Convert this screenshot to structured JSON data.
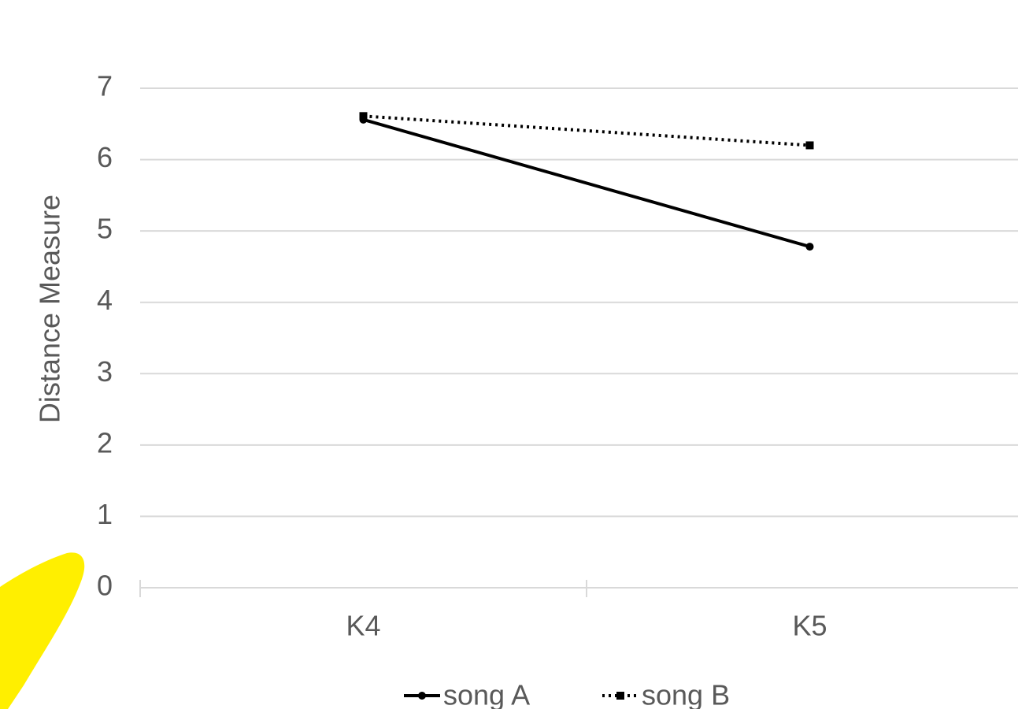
{
  "chart_data": {
    "type": "line",
    "y_label": "Distance Measure",
    "categories": [
      "K4",
      "K5"
    ],
    "series": [
      {
        "name": "song A",
        "color": "#000000",
        "dash": "solid",
        "marker": "circle",
        "values": [
          6.56,
          4.78
        ]
      },
      {
        "name": "song B",
        "color": "#000000",
        "dash": "dotted",
        "marker": "square",
        "values": [
          6.61,
          6.2
        ]
      }
    ],
    "ylim": [
      0,
      7
    ],
    "yticks": [
      0,
      1,
      2,
      3,
      4,
      5,
      6,
      7
    ],
    "grid": true,
    "legend": "bottom"
  }
}
